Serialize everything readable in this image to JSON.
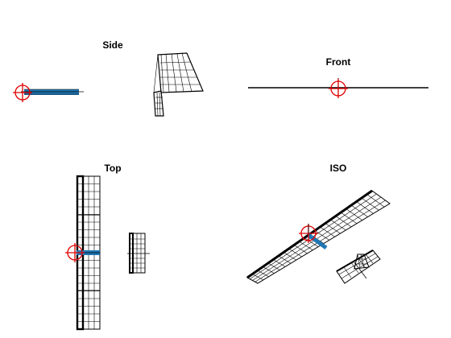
{
  "views": {
    "side": {
      "title": "Side"
    },
    "front": {
      "title": "Front"
    },
    "top": {
      "title": "Top"
    },
    "iso": {
      "title": "ISO"
    }
  },
  "colors": {
    "wireframe": "#000000",
    "reference_marker": "#dd0000",
    "fuselage": "#1f77b4",
    "background": "#ffffff"
  },
  "icons": {
    "reference_marker": "crosshair-circle-icon"
  }
}
